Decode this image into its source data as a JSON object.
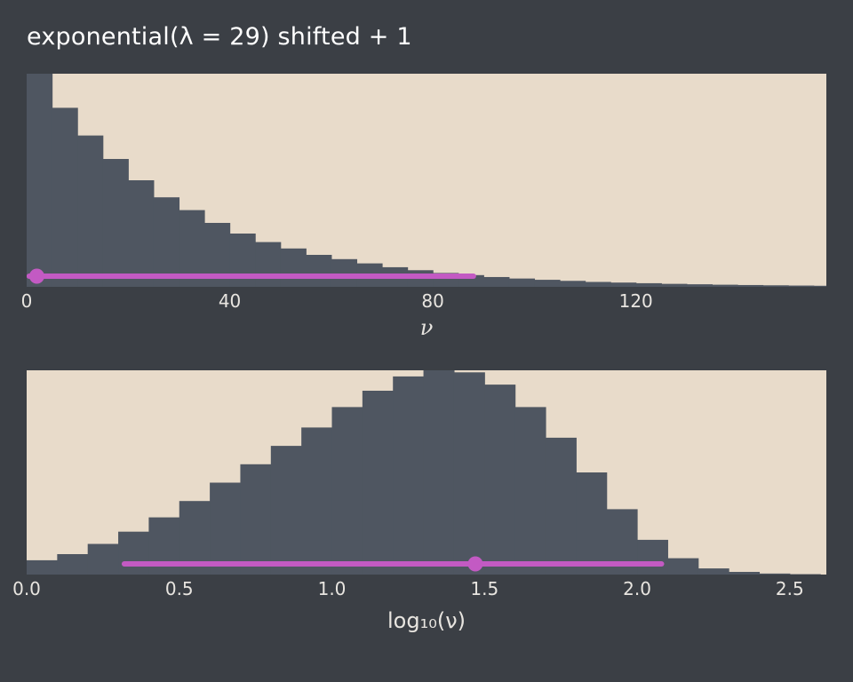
{
  "title": "exponential(λ = 29) shifted + 1",
  "colors": {
    "background": "#3b3f45",
    "panel_background": "#e8dbca",
    "bar": "#4f5661",
    "interval": "#c35ac3",
    "title_text": "#ffffff",
    "tick_text": "#e8e5e0"
  },
  "chart_data": [
    {
      "type": "bar",
      "id": "nu-histogram",
      "title": "",
      "xlabel": "ν",
      "ylabel": "",
      "bin_start": 0,
      "bin_width": 5,
      "values": [
        1.0,
        0.84,
        0.71,
        0.6,
        0.5,
        0.42,
        0.36,
        0.3,
        0.25,
        0.21,
        0.18,
        0.15,
        0.13,
        0.11,
        0.092,
        0.078,
        0.065,
        0.055,
        0.046,
        0.039,
        0.033,
        0.028,
        0.023,
        0.02,
        0.017,
        0.014,
        0.012,
        0.01,
        0.0085,
        0.0072,
        0.006,
        0.005
      ],
      "xlim": [
        0,
        157.5
      ],
      "x_ticks": [
        0,
        40,
        80,
        120
      ],
      "x_tick_labels": [
        "0",
        "40",
        "80",
        "120"
      ],
      "grid": false,
      "legend": "none",
      "interval": {
        "lower": 0.5,
        "upper": 88,
        "point": 2
      }
    },
    {
      "type": "bar",
      "id": "log10-nu-histogram",
      "title": "",
      "xlabel": "log₁₀(ν)",
      "ylabel": "",
      "bin_start": 0,
      "bin_width": 0.1,
      "values": [
        0.07,
        0.1,
        0.15,
        0.21,
        0.28,
        0.36,
        0.45,
        0.54,
        0.63,
        0.72,
        0.82,
        0.9,
        0.97,
        1.0,
        0.99,
        0.93,
        0.82,
        0.67,
        0.5,
        0.32,
        0.17,
        0.08,
        0.03,
        0.013,
        0.005,
        0.002
      ],
      "xlim": [
        0,
        2.62
      ],
      "x_ticks": [
        0.0,
        0.5,
        1.0,
        1.5,
        2.0,
        2.5
      ],
      "x_tick_labels": [
        "0.0",
        "0.5",
        "1.0",
        "1.5",
        "2.0",
        "2.5"
      ],
      "grid": false,
      "legend": "none",
      "interval": {
        "lower": 0.32,
        "upper": 2.08,
        "point": 1.47
      }
    }
  ]
}
